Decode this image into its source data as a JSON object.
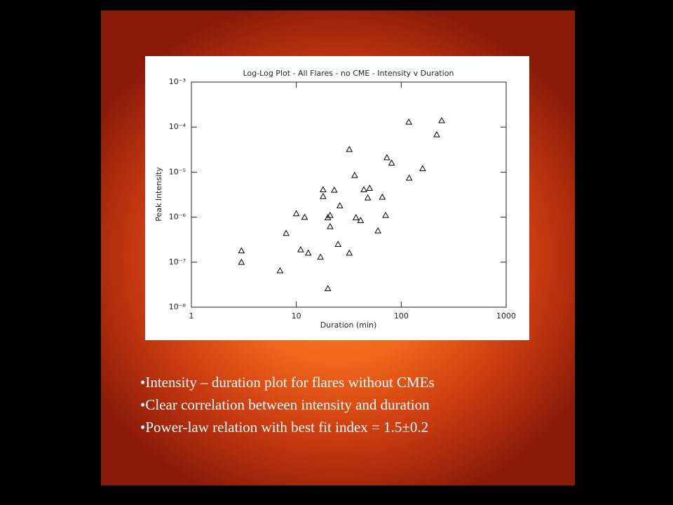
{
  "chart_data": {
    "type": "scatter",
    "title": "Log-Log Plot - All Flares - no CME - Intensity v Duration",
    "x_label": "Duration (min)",
    "y_label": "Peak Intensity",
    "x": [
      3,
      3,
      7,
      8,
      10,
      11,
      12,
      13,
      17,
      18,
      18,
      20,
      21,
      21,
      20,
      23,
      26,
      25,
      32,
      32,
      36,
      37,
      41,
      44,
      48,
      50,
      60,
      66,
      71,
      73,
      81,
      118,
      119,
      160,
      218,
      243
    ],
    "values": [
      1.8e-07,
      1e-07,
      6.5e-08,
      4.4e-07,
      1.2e-06,
      1.9e-07,
      1e-06,
      1.6e-07,
      1.3e-07,
      4.1e-06,
      2.9e-06,
      9.8e-07,
      1.1e-06,
      6.2e-07,
      2.6e-08,
      4e-06,
      1.8e-06,
      2.5e-07,
      3.2e-05,
      1.6e-07,
      8.5e-06,
      9.8e-07,
      8.5e-07,
      4.1e-06,
      2.7e-06,
      4.4e-06,
      5e-07,
      2.8e-06,
      1.1e-06,
      2.1e-05,
      1.6e-05,
      0.00013,
      7.4e-06,
      1.2e-05,
      6.8e-05,
      0.00014
    ],
    "color": "#000000",
    "marker": "triangle",
    "xlog": true,
    "ylog": true,
    "xlim": [
      1,
      1000
    ],
    "xticks": [
      1,
      10,
      100,
      1000
    ],
    "ylim": [
      1e-08,
      0.001
    ],
    "yticks": [
      {
        "value": 1e-08,
        "label": "10⁻⁸"
      },
      {
        "value": 1e-07,
        "label": "10⁻⁷"
      },
      {
        "value": 1e-06,
        "label": "10⁻⁶"
      },
      {
        "value": 1e-05,
        "label": "10⁻⁵"
      },
      {
        "value": 0.0001,
        "label": "10⁻⁴"
      },
      {
        "value": 0.001,
        "label": "10⁻³"
      }
    ]
  },
  "bullets": [
    "•Intensity – duration plot for flares without CMEs",
    "•Clear correlation between intensity and duration",
    "•Power-law relation with best fit index = 1.5±0.2"
  ]
}
